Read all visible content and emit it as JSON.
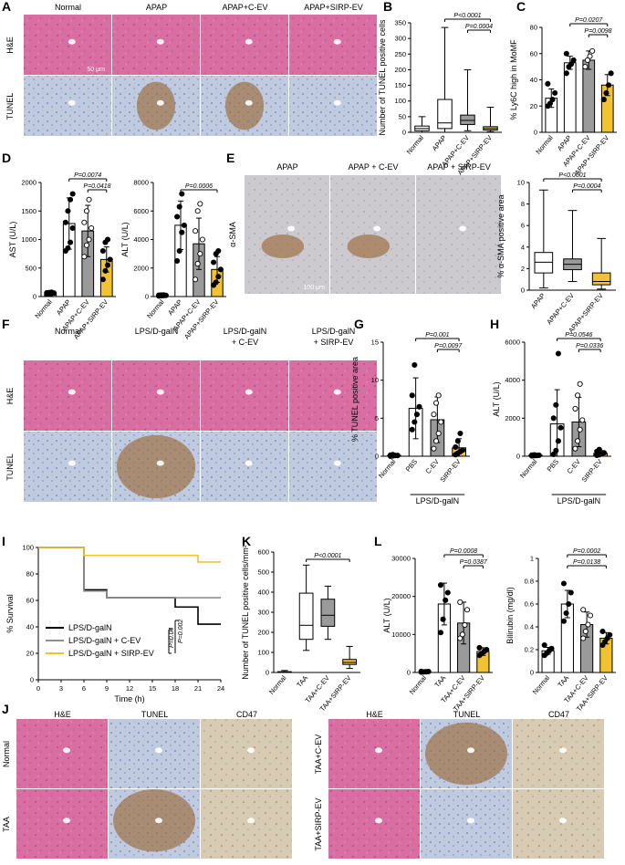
{
  "figure": {
    "panels": {
      "A": "A",
      "B": "B",
      "C": "C",
      "D": "D",
      "E": "E",
      "F": "F",
      "G": "G",
      "H": "H",
      "I": "I",
      "J": "J",
      "K": "K",
      "L": "L"
    }
  },
  "micrographs": {
    "A": {
      "cols": [
        "Normal",
        "APAP",
        "APAP+C-EV",
        "APAP+SIRP-EV"
      ],
      "rows": [
        "H&E",
        "TUNEL"
      ],
      "scale": "50 μm"
    },
    "E": {
      "cols": [
        "APAP",
        "APAP + C-EV",
        "APAP + SIRP-EV"
      ],
      "rows": [
        "α-SMA"
      ],
      "scale": "100 μm"
    },
    "F": {
      "cols": [
        "Normal",
        "LPS/D-galN",
        "LPS/D-galN\n+ C-EV",
        "LPS/D-galN\n+ SIRP-EV"
      ],
      "rows": [
        "H&E",
        "TUNEL"
      ]
    },
    "J": {
      "cols_left": [
        "H&E",
        "TUNEL",
        "CD47"
      ],
      "cols_right": [
        "H&E",
        "TUNEL",
        "CD47"
      ],
      "rows_left": [
        "Normal",
        "TAA"
      ],
      "rows_right": [
        "TAA+C-EV",
        "TAA+SIRP-EV"
      ]
    }
  },
  "colors": {
    "white": "#ffffff",
    "grey": "#9a9a9a",
    "yellow": "#f2c232",
    "black": "#000000",
    "sirp_line": "#f2c232",
    "cev_line": "#8f8f8f",
    "he_pink": "#d86ea2",
    "tunel_blue": "#b7c3dc",
    "brown": "#9b6a3a"
  },
  "chart_data": [
    {
      "id": "B",
      "type": "box",
      "ylabel": "Number of TUNEL positive cells",
      "ylim": [
        0,
        350
      ],
      "yticks": [
        0,
        50,
        100,
        150,
        200,
        250,
        300,
        350
      ],
      "categories": [
        "Normal",
        "APAP",
        "APAP+C-EV",
        "APAP+SIRP-EV"
      ],
      "boxes": [
        {
          "min": 0,
          "q1": 5,
          "median": 12,
          "q3": 20,
          "max": 50
        },
        {
          "min": 0,
          "q1": 12,
          "median": 30,
          "q3": 105,
          "max": 335
        },
        {
          "min": 5,
          "q1": 25,
          "median": 38,
          "q3": 55,
          "max": 200
        },
        {
          "min": 2,
          "q1": 7,
          "median": 12,
          "q3": 18,
          "max": 80
        }
      ],
      "annotations": [
        {
          "text": "P<0.0001",
          "from": 1,
          "to": 3
        },
        {
          "text": "P=0.0004",
          "from": 2,
          "to": 3
        }
      ]
    },
    {
      "id": "C",
      "type": "bar",
      "ylabel": "% Ly6C high in MoMF",
      "ylim": [
        0,
        80
      ],
      "yticks": [
        0,
        20,
        40,
        60,
        80
      ],
      "categories": [
        "Normal",
        "APAP",
        "APAP+C-EV",
        "APAP+SIRP-EV"
      ],
      "values": [
        26,
        53,
        55,
        36
      ],
      "errors": [
        7,
        5,
        7,
        8
      ],
      "points": [
        [
          20,
          22,
          25,
          30,
          37
        ],
        [
          45,
          50,
          52,
          55,
          60
        ],
        [
          50,
          55,
          58,
          62
        ],
        [
          25,
          30,
          36,
          45
        ]
      ],
      "annotations": [
        {
          "text": "P=0.0207",
          "from": 1,
          "to": 3
        },
        {
          "text": "P=0.0098",
          "from": 2,
          "to": 3
        }
      ]
    },
    {
      "id": "D1",
      "type": "bar",
      "ylabel": "AST (U/L)",
      "ylim": [
        0,
        2000
      ],
      "yticks": [
        0,
        500,
        1000,
        1500,
        2000
      ],
      "categories": [
        "Normal",
        "APAP",
        "APAP+C-EV",
        "APAP+SIRP-EV"
      ],
      "values": [
        60,
        1280,
        1150,
        650
      ],
      "errors": [
        20,
        450,
        450,
        220
      ],
      "points": [
        [
          40,
          50,
          55,
          60,
          65,
          70,
          75
        ],
        [
          800,
          850,
          950,
          1200,
          1300,
          1500,
          1700,
          1800
        ],
        [
          700,
          900,
          1000,
          1200,
          1300,
          1500,
          1700
        ],
        [
          300,
          450,
          550,
          650,
          800,
          950,
          1000
        ]
      ],
      "annotations": [
        {
          "text": "P=0.0074",
          "from": 1,
          "to": 3
        },
        {
          "text": "P=0.0418",
          "from": 2,
          "to": 3
        }
      ]
    },
    {
      "id": "D2",
      "type": "bar",
      "ylabel": "ALT (U/L)",
      "ylim": [
        0,
        8000
      ],
      "yticks": [
        0,
        2000,
        4000,
        6000,
        8000
      ],
      "categories": [
        "Normal",
        "APAP",
        "APAP+C-EV",
        "APAP+SIRP-EV"
      ],
      "values": [
        80,
        5000,
        3700,
        1900
      ],
      "errors": [
        30,
        1700,
        1800,
        900
      ],
      "points": [
        [
          40,
          60,
          70,
          80,
          90,
          100,
          110
        ],
        [
          2500,
          3200,
          4500,
          5000,
          5600,
          6300,
          7200
        ],
        [
          1200,
          2300,
          3000,
          4000,
          4600,
          6000,
          6500
        ],
        [
          800,
          1000,
          1400,
          1900,
          2400,
          3000,
          3200
        ]
      ],
      "annotations": [
        {
          "text": "P=0.0006",
          "from": 1,
          "to": 3
        }
      ]
    },
    {
      "id": "E2",
      "type": "box",
      "ylabel": "% α-SMA positive area",
      "ylim": [
        0,
        10
      ],
      "yticks": [
        0,
        2,
        4,
        6,
        8,
        10
      ],
      "categories": [
        "APAP",
        "APAP+C-EV",
        "APAP+SIRP-EV"
      ],
      "boxes": [
        {
          "min": 0.2,
          "q1": 1.6,
          "median": 2.6,
          "q3": 3.5,
          "max": 9.3
        },
        {
          "min": 0.8,
          "q1": 1.9,
          "median": 2.4,
          "q3": 2.9,
          "max": 7.4
        },
        {
          "min": 0.1,
          "q1": 0.5,
          "median": 0.8,
          "q3": 1.6,
          "max": 4.8
        }
      ],
      "annotations": [
        {
          "text": "P<0.0001",
          "from": 0,
          "to": 2
        },
        {
          "text": "P=0.0004",
          "from": 1,
          "to": 2
        }
      ]
    },
    {
      "id": "G",
      "type": "bar",
      "ylabel": "% TUNEL positive area",
      "ylim": [
        0,
        15
      ],
      "yticks": [
        0,
        5,
        10,
        15
      ],
      "categories": [
        "Normal",
        "PBS",
        "C-EV",
        "SIRP-EV"
      ],
      "group_label": "LPS/D-galN",
      "values": [
        0.1,
        6.3,
        4.8,
        1.1
      ],
      "errors": [
        0.1,
        4,
        3,
        1.2
      ],
      "points": [
        [
          0,
          0.05,
          0.1,
          0.1,
          0.15,
          0.2
        ],
        [
          3.5,
          4.5,
          5.5,
          6.5,
          8,
          12
        ],
        [
          1,
          2,
          3,
          4.5,
          5.5,
          7,
          8
        ],
        [
          0.2,
          0.4,
          0.6,
          0.8,
          1.2,
          2,
          3
        ]
      ],
      "annotations": [
        {
          "text": "P=0.001",
          "from": 1,
          "to": 3
        },
        {
          "text": "P=0.0097",
          "from": 2,
          "to": 3
        }
      ]
    },
    {
      "id": "H",
      "type": "bar",
      "ylabel": "ALT (U/L)",
      "ylim": [
        0,
        6000
      ],
      "yticks": [
        0,
        2000,
        4000,
        6000
      ],
      "categories": [
        "Normal",
        "PBS",
        "C-EV",
        "SIRP-EV"
      ],
      "group_label": "LPS/D-galN",
      "values": [
        50,
        1700,
        1800,
        150
      ],
      "errors": [
        30,
        1800,
        1300,
        150
      ],
      "points": [
        [
          20,
          30,
          40,
          50,
          60,
          70
        ],
        [
          100,
          300,
          800,
          1500,
          2000,
          2700,
          5400
        ],
        [
          400,
          800,
          1400,
          1900,
          2500,
          3200,
          3800
        ],
        [
          50,
          80,
          120,
          180,
          250,
          350
        ]
      ],
      "annotations": [
        {
          "text": "P=0.0546",
          "from": 1,
          "to": 3
        },
        {
          "text": "P=0.0336",
          "from": 2,
          "to": 3
        }
      ]
    },
    {
      "id": "I",
      "type": "line",
      "ylabel": "% Survival",
      "xlabel": "Time (h)",
      "ylim": [
        0,
        100
      ],
      "xlim": [
        0,
        24
      ],
      "yticks": [
        0,
        20,
        40,
        60,
        80,
        100
      ],
      "xticks": [
        0,
        3,
        6,
        9,
        12,
        15,
        18,
        21,
        24
      ],
      "series": [
        {
          "name": "LPS/D-galN",
          "x": [
            0,
            6,
            9,
            18,
            21,
            24
          ],
          "y": [
            100,
            68,
            62,
            55,
            42,
            42
          ]
        },
        {
          "name": "LPS/D-galN + C-EV",
          "x": [
            0,
            6,
            9,
            24
          ],
          "y": [
            100,
            67,
            62,
            62
          ]
        },
        {
          "name": "LPS/D-galN + SIRP-EV",
          "x": [
            0,
            6,
            21,
            24
          ],
          "y": [
            100,
            94,
            89,
            89
          ]
        }
      ],
      "annotations": [
        "P=0.002",
        "P=0.04"
      ]
    },
    {
      "id": "K",
      "type": "box",
      "ylabel": "Number of TUNEL positive cells/mm²",
      "ylim": [
        0,
        600
      ],
      "yticks": [
        0,
        100,
        200,
        300,
        400,
        500,
        600
      ],
      "categories": [
        "Normal",
        "TAA",
        "TAA+C-EV",
        "TAA+SIRP-EV"
      ],
      "boxes": [
        {
          "min": 0,
          "q1": 0,
          "median": 1,
          "q3": 4,
          "max": 10
        },
        {
          "min": 110,
          "q1": 165,
          "median": 235,
          "q3": 395,
          "max": 535
        },
        {
          "min": 165,
          "q1": 230,
          "median": 285,
          "q3": 365,
          "max": 430
        },
        {
          "min": 20,
          "q1": 40,
          "median": 50,
          "q3": 65,
          "max": 130
        }
      ],
      "annotations": [
        {
          "text": "P<0.0001",
          "from": 1,
          "to": 3
        }
      ]
    },
    {
      "id": "L1",
      "type": "bar",
      "ylabel": "ALT (U/L)",
      "ylim": [
        0,
        30000
      ],
      "yticks": [
        0,
        10000,
        20000,
        30000
      ],
      "categories": [
        "Normal",
        "TAA",
        "TAA+C-EV",
        "TAA+SIRP-EV"
      ],
      "values": [
        200,
        18000,
        13000,
        5500
      ],
      "errors": [
        100,
        5500,
        5500,
        1000
      ],
      "points": [
        [
          100,
          150,
          200,
          250,
          300
        ],
        [
          10500,
          14000,
          19000,
          21000,
          23000
        ],
        [
          9000,
          10000,
          12500,
          16500,
          18500
        ],
        [
          4500,
          5000,
          5500,
          6000,
          6500
        ]
      ],
      "annotations": [
        {
          "text": "P=0.0008",
          "from": 1,
          "to": 3
        },
        {
          "text": "P=0.0387",
          "from": 2,
          "to": 3
        }
      ]
    },
    {
      "id": "L2",
      "type": "bar",
      "ylabel": "Bilirubin (mg/dl)",
      "ylim": [
        0,
        1.0
      ],
      "yticks": [
        0,
        0.2,
        0.4,
        0.6,
        0.8,
        1.0
      ],
      "categories": [
        "Normal",
        "TAA",
        "TAA+C-EV",
        "TAA+SIRP-EV"
      ],
      "values": [
        0.19,
        0.6,
        0.42,
        0.3
      ],
      "errors": [
        0.03,
        0.12,
        0.11,
        0.05
      ],
      "points": [
        [
          0.15,
          0.17,
          0.19,
          0.21,
          0.24
        ],
        [
          0.45,
          0.52,
          0.6,
          0.7,
          0.78
        ],
        [
          0.3,
          0.36,
          0.42,
          0.5,
          0.55
        ],
        [
          0.24,
          0.27,
          0.3,
          0.33,
          0.36
        ]
      ],
      "annotations": [
        {
          "text": "P=0.0002",
          "from": 1,
          "to": 3
        },
        {
          "text": "P=0.0138",
          "from": 1,
          "to": 3
        }
      ]
    }
  ]
}
